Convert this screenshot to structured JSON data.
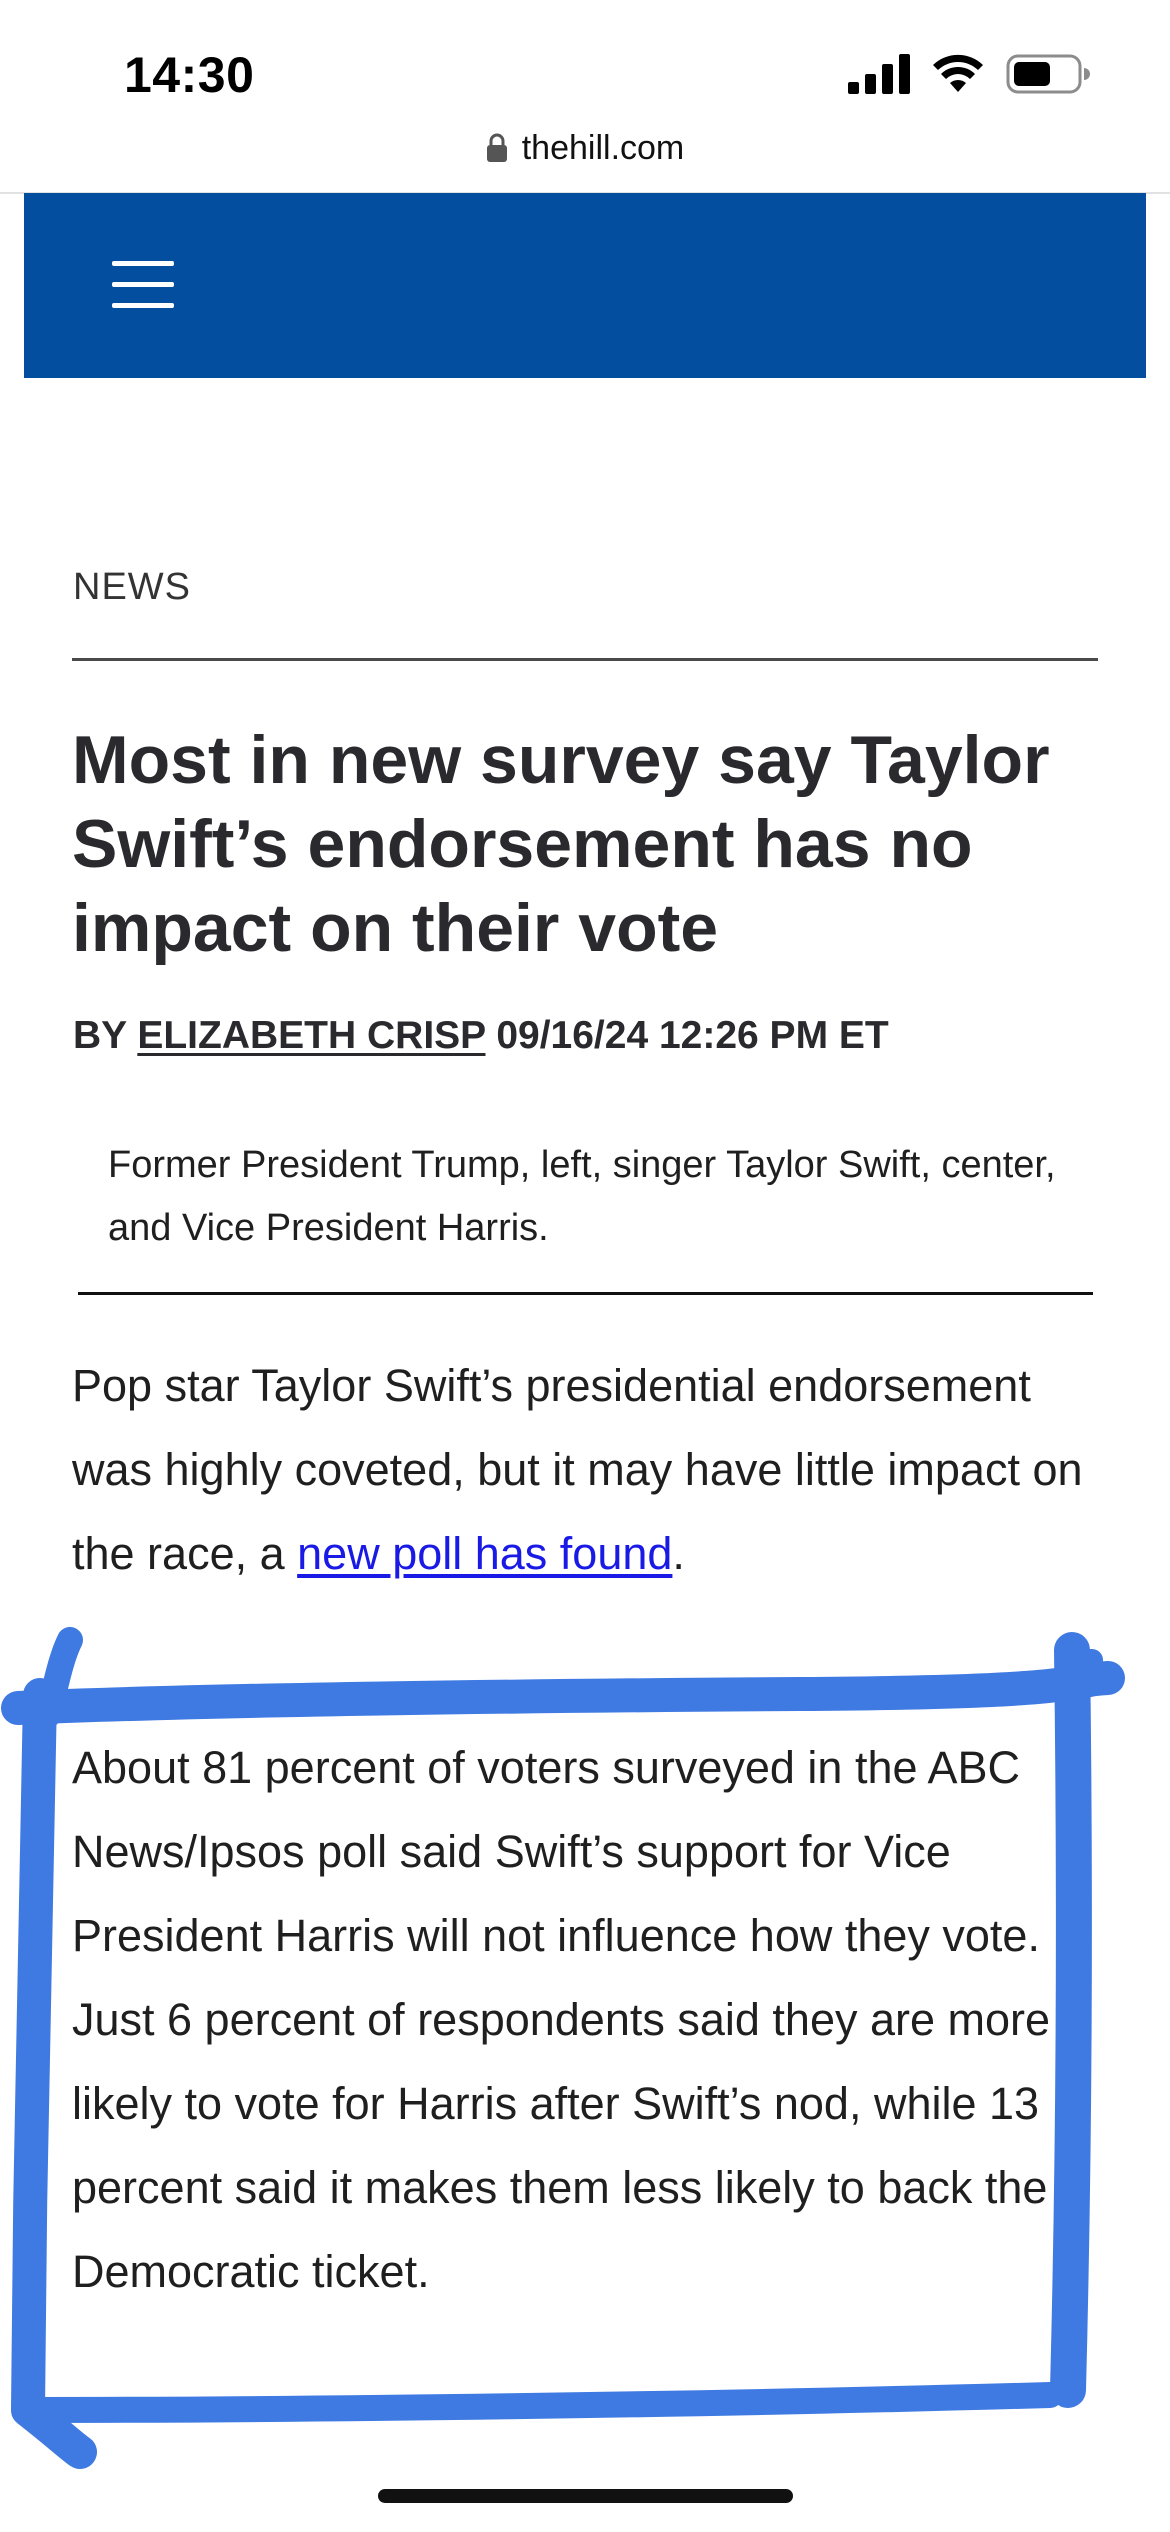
{
  "status_bar": {
    "time": "14:30",
    "icons": [
      "cellular-signal-icon",
      "wifi-icon",
      "battery-icon"
    ]
  },
  "browser": {
    "url": "thehill.com",
    "secure_icon": "lock-icon"
  },
  "site_header": {
    "background_color": "#044ea0",
    "menu_icon": "hamburger-menu-icon"
  },
  "article": {
    "section": "NEWS",
    "headline": "Most in new survey say Taylor Swift’s endorsement has no impact on their vote",
    "byline_prefix": "BY",
    "author": "ELIZABETH CRISP",
    "datetime": "09/16/24 12:26 PM ET",
    "caption": "Former President Trump, left, singer Taylor Swift, center, and Vice President Harris.",
    "paragraph1_text": "Pop star Taylor Swift’s presidential endorsement was highly coveted, but it may have little impact on the race, a ",
    "paragraph1_link": "new poll has found",
    "paragraph1_end": ".",
    "paragraph2": "About 81 percent of voters surveyed in the ABC News/Ipsos poll said Swift’s support for Vice President Harris will not influence how they vote. Just 6 percent of respondents said they are more likely to vote for Harris after Swift’s nod, while 13 percent said it makes them less likely to back the Democratic ticket."
  },
  "annotation": {
    "color": "#2f6fe0"
  }
}
